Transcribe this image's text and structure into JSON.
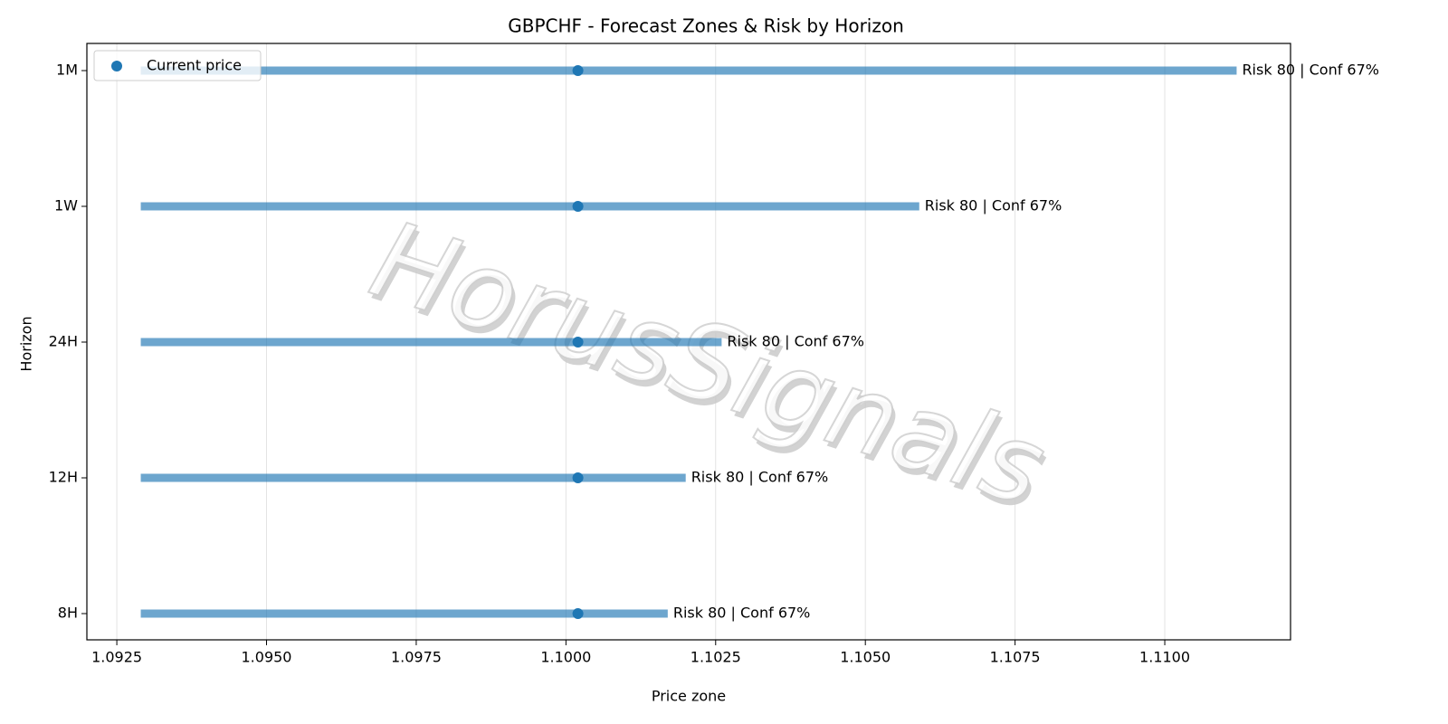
{
  "chart_data": {
    "type": "range",
    "title": "GBPCHF - Forecast Zones & Risk by Horizon",
    "xlabel": "Price zone",
    "ylabel": "Horizon",
    "categories": [
      "8H",
      "12H",
      "24H",
      "1W",
      "1M"
    ],
    "low": [
      1.0929,
      1.0929,
      1.0929,
      1.0929,
      1.0929
    ],
    "high": [
      1.1017,
      1.102,
      1.1026,
      1.1059,
      1.1112
    ],
    "zone_color": "#1f77b4",
    "series": [
      {
        "name": "Current price",
        "color": "#1f77b4",
        "values": [
          1.1002,
          1.1002,
          1.1002,
          1.1002,
          1.1002
        ]
      }
    ],
    "labels": [
      "Risk 80 | Conf 67%",
      "Risk 80 | Conf 67%",
      "Risk 80 | Conf 67%",
      "Risk 80 | Conf 67%",
      "Risk 80 | Conf 67%"
    ],
    "xlim": [
      1.092,
      1.1121
    ],
    "xticks": [
      1.0925,
      {
        "value": 1.095,
        "label": "1.0950"
      },
      1.0975,
      {
        "value": 1.1,
        "label": "1.1000"
      },
      1.1025,
      {
        "value": 1.105,
        "label": "1.1050"
      },
      1.1075,
      {
        "value": 1.11,
        "label": "1.1100"
      }
    ],
    "grid": true,
    "legend": "upper left",
    "watermark": "HorusSignals"
  }
}
